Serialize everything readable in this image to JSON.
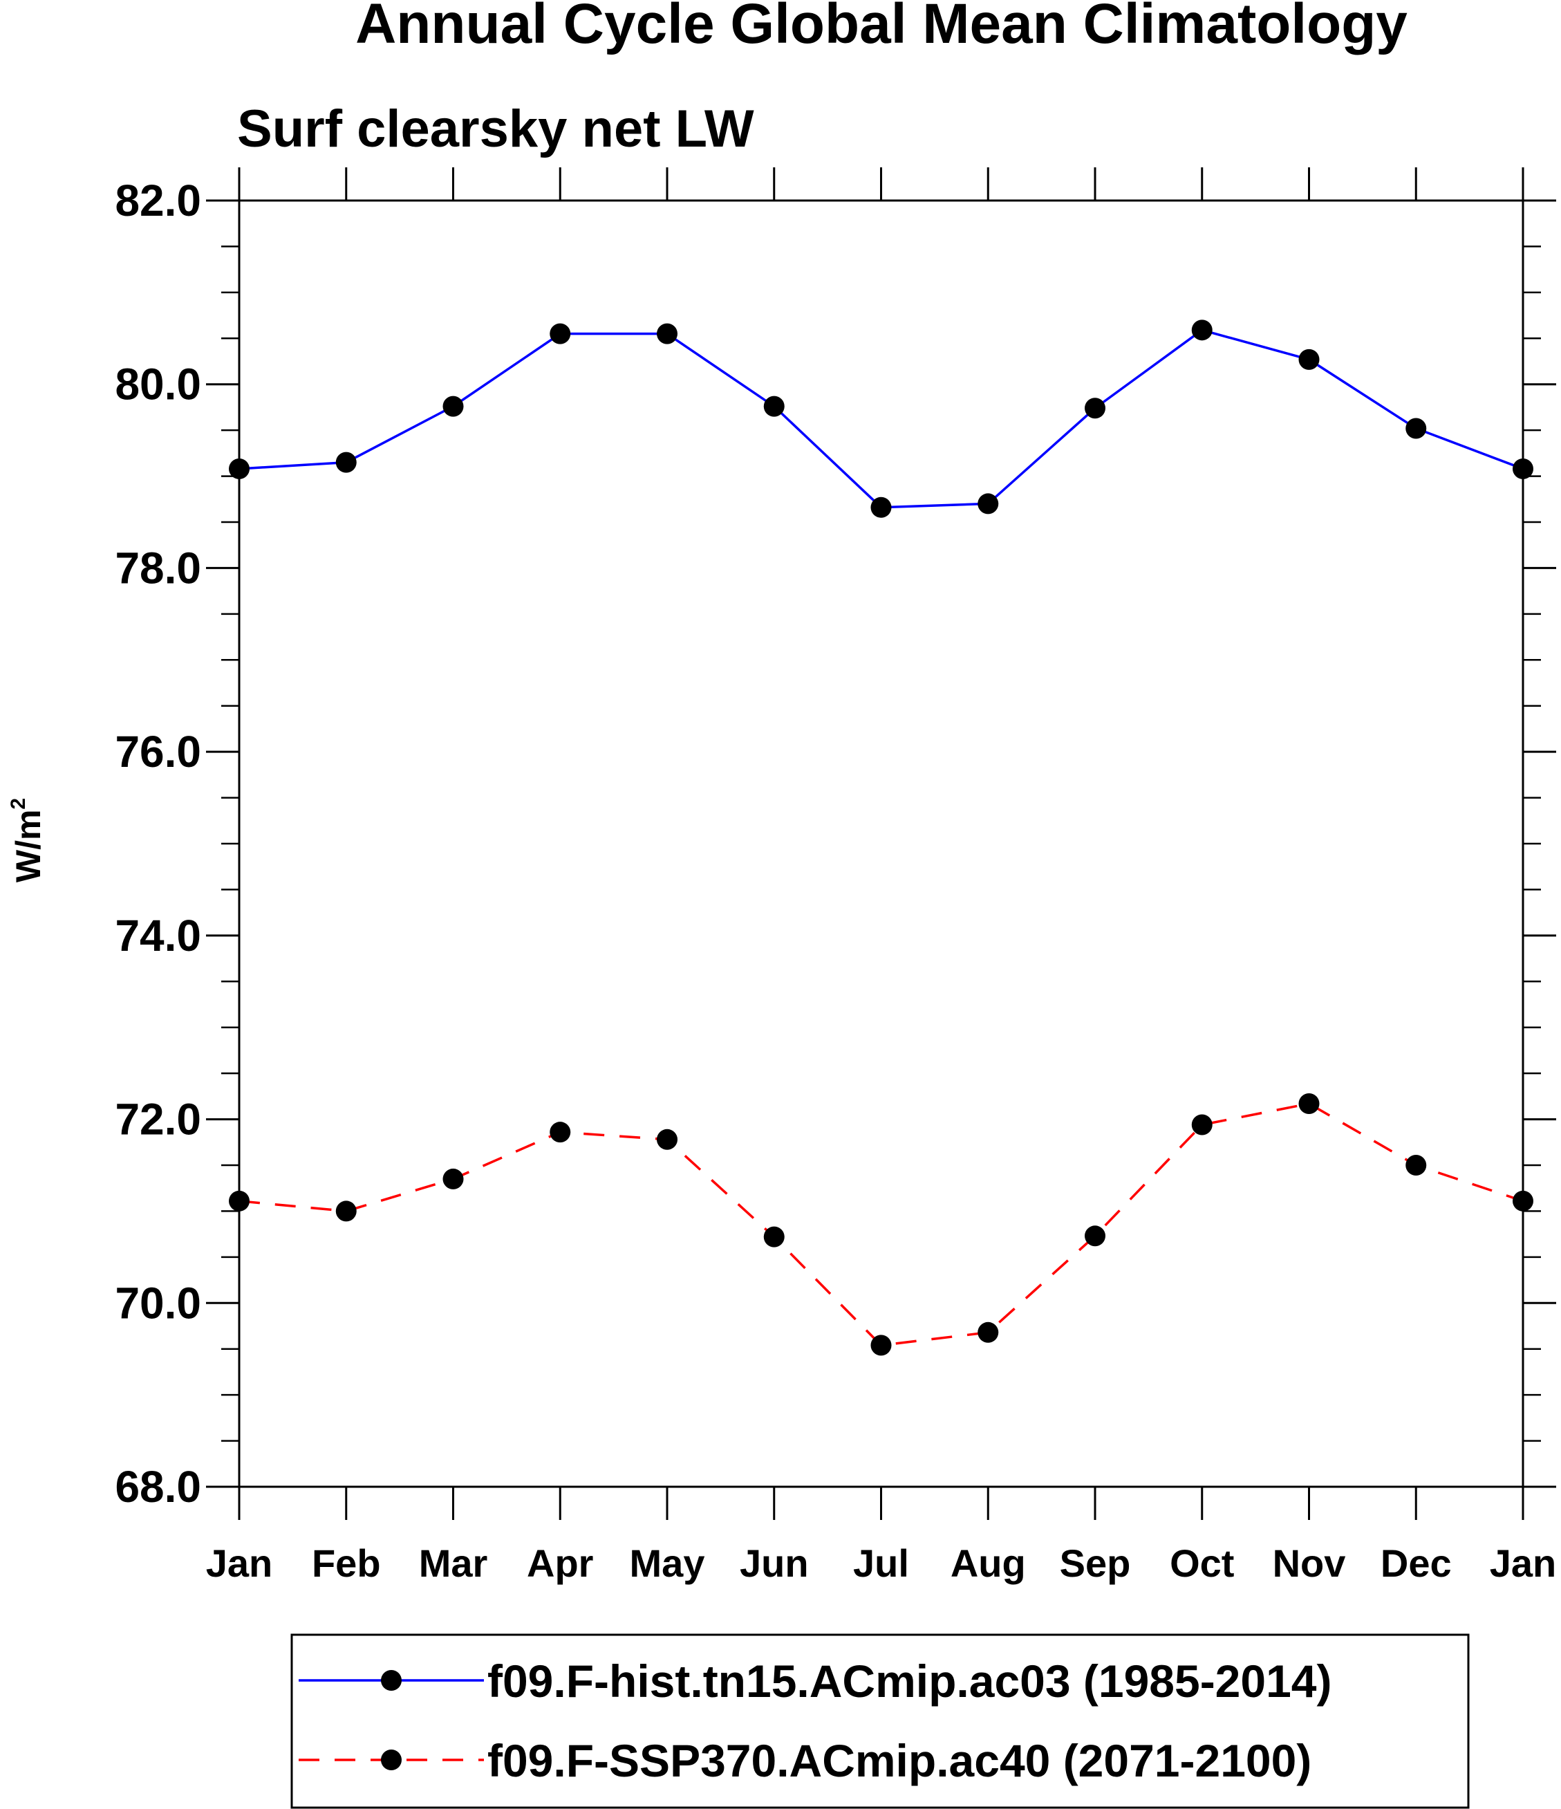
{
  "chart_data": {
    "type": "line",
    "title": "Annual Cycle Global Mean Climatology",
    "subtitle": "Surf clearsky net LW",
    "ylabel": "W/m",
    "ylabel_superscript": "2",
    "xlabel": "",
    "categories": [
      "Jan",
      "Feb",
      "Mar",
      "Apr",
      "May",
      "Jun",
      "Jul",
      "Aug",
      "Sep",
      "Oct",
      "Nov",
      "Dec",
      "Jan"
    ],
    "ylim": [
      68.0,
      82.0
    ],
    "yticks": [
      68.0,
      70.0,
      72.0,
      74.0,
      76.0,
      78.0,
      80.0,
      82.0
    ],
    "ytick_labels": [
      "68.0",
      "70.0",
      "72.0",
      "74.0",
      "76.0",
      "78.0",
      "80.0",
      "82.0"
    ],
    "y_minor_step": 0.5,
    "grid": false,
    "legend_position": "bottom",
    "series": [
      {
        "name": "f09.F-hist.tn15.ACmip.ac03 (1985-2014)",
        "color": "#0000ff",
        "line_style": "solid",
        "marker": "filled-circle",
        "marker_color": "#000000",
        "values": [
          79.08,
          79.15,
          79.76,
          80.55,
          80.55,
          79.76,
          78.66,
          78.7,
          79.74,
          80.59,
          80.27,
          79.52,
          79.08
        ]
      },
      {
        "name": "f09.F-SSP370.ACmip.ac40 (2071-2100)",
        "color": "#ff0000",
        "line_style": "dashed",
        "marker": "filled-circle",
        "marker_color": "#000000",
        "values": [
          71.11,
          71.0,
          71.35,
          71.86,
          71.78,
          70.72,
          69.54,
          69.68,
          70.73,
          71.94,
          72.17,
          71.5,
          71.11
        ]
      }
    ]
  }
}
